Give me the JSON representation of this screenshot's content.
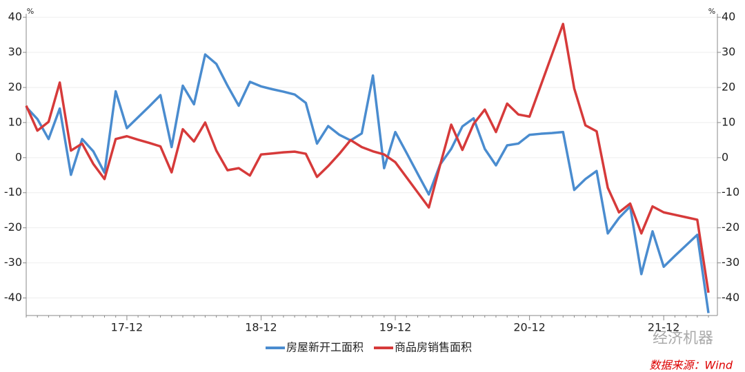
{
  "chart_data": {
    "type": "line",
    "categories": [
      null,
      null,
      null,
      null,
      null,
      null,
      null,
      null,
      null,
      "17-12",
      null,
      null,
      null,
      null,
      null,
      null,
      null,
      null,
      null,
      null,
      null,
      "18-12",
      null,
      null,
      null,
      null,
      null,
      null,
      null,
      null,
      null,
      null,
      null,
      "19-12",
      null,
      null,
      null,
      null,
      null,
      null,
      null,
      null,
      null,
      null,
      null,
      "20-12",
      null,
      null,
      null,
      null,
      null,
      null,
      null,
      null,
      null,
      null,
      null,
      "21-12",
      null,
      null,
      null,
      null
    ],
    "series": [
      {
        "name": "房屋新开工面积",
        "color": "#4a8ccf",
        "values": [
          14.4,
          11,
          5.3,
          14,
          -4.9,
          5.3,
          1.8,
          -4.3,
          18.9,
          8.4,
          11.5,
          14.6,
          17.8,
          3,
          20.5,
          15.2,
          29.4,
          26.7,
          20.5,
          14.8,
          21.6,
          20.3,
          19.5,
          18.8,
          18,
          15.6,
          4,
          9,
          6.5,
          4.9,
          6.9,
          23.4,
          -3,
          7.3,
          1.4,
          -4.6,
          -10.5,
          -2,
          2.5,
          8.9,
          11.2,
          2.5,
          -2.2,
          3.5,
          4,
          6.5,
          6.8,
          7,
          7.3,
          -9.2,
          -6.1,
          -3.8,
          -21.6,
          -17.2,
          -13.9,
          -33.2,
          -21,
          -31.1,
          -28,
          -25,
          -22,
          -44.3
        ]
      },
      {
        "name": "商品房销售面积",
        "color": "#d63a3a",
        "values": [
          14.8,
          7.7,
          10.2,
          21.4,
          2,
          4,
          -1.8,
          -6.1,
          5.3,
          6.1,
          5.1,
          4.2,
          3.2,
          -4.2,
          8.1,
          4.6,
          10,
          2,
          -3.6,
          -3,
          -5.1,
          0.9,
          1.2,
          1.5,
          1.7,
          1.1,
          -5.5,
          -2.4,
          1.1,
          5,
          3,
          1.8,
          0.9,
          -1.3,
          -5.6,
          -9.9,
          -14.2,
          -2.2,
          9.4,
          2.2,
          9.6,
          13.7,
          7.3,
          15.4,
          12.3,
          11.7,
          20.5,
          29.3,
          38.1,
          19.7,
          9.2,
          7.5,
          -8.6,
          -15.6,
          -13.1,
          -21.6,
          -13.9,
          -15.6,
          -16.3,
          -17,
          -17.7,
          -38.5
        ]
      }
    ],
    "ylim": [
      -45,
      41
    ],
    "yticks": [
      -40,
      -30,
      -20,
      -10,
      0,
      10,
      20,
      30,
      40
    ],
    "y2lim": [
      -45,
      41
    ],
    "y2ticks": [
      -40,
      -30,
      -20,
      -10,
      0,
      10,
      20,
      30,
      40
    ],
    "yunit": "%",
    "y2unit": "%",
    "grid": true,
    "legend": "bottom",
    "watermark": "经济机器",
    "source": "数据来源：Wind"
  }
}
